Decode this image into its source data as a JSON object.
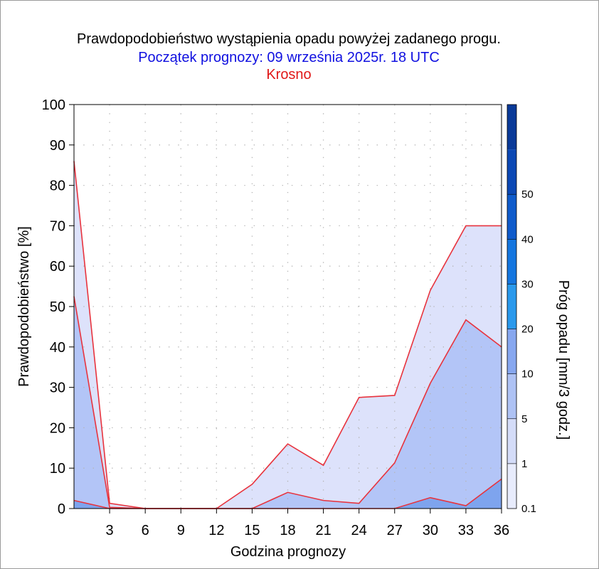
{
  "header": {
    "title": "Prawdopodobieństwo wystąpienia opadu powyżej zadanego progu.",
    "subtitle": "Początek prognozy: 09 września 2025r. 18 UTC",
    "location": "Krosno"
  },
  "colors": {
    "title": "#000000",
    "subtitle": "#1010e0",
    "location": "#e01818",
    "line": "#e8333d",
    "grid": "#b4b4b4"
  },
  "chart_data": {
    "type": "area",
    "title": "Prawdopodobieństwo wystąpienia opadu powyżej zadanego progu.",
    "xlabel": "Godzina prognozy",
    "ylabel": "Prawdopodobieństwo [%]",
    "xlim": [
      0,
      36
    ],
    "ylim": [
      0,
      100
    ],
    "xticks": [
      3,
      6,
      9,
      12,
      15,
      18,
      21,
      24,
      27,
      30,
      33,
      36
    ],
    "yticks": [
      0,
      10,
      20,
      30,
      40,
      50,
      60,
      70,
      80,
      90,
      100
    ],
    "grid": true,
    "x": [
      0,
      3,
      6,
      9,
      12,
      15,
      18,
      21,
      24,
      27,
      30,
      33,
      36
    ],
    "series": [
      {
        "threshold": 0.1,
        "color": "#dde2fb",
        "values": [
          86,
          1.3,
          0,
          0,
          0,
          6,
          16,
          10.7,
          27.5,
          28,
          54,
          70,
          70
        ]
      },
      {
        "threshold": 1,
        "color": "#b3c5f7",
        "values": [
          52.5,
          0.3,
          0,
          0,
          0,
          0,
          4,
          2,
          1.3,
          11.3,
          31,
          46.7,
          40
        ]
      },
      {
        "threshold": 5,
        "color": "#7ea4ee",
        "values": [
          2,
          0,
          0,
          0,
          0,
          0,
          0,
          0,
          0,
          0,
          2.7,
          0.7,
          7.3
        ]
      }
    ],
    "colorbar": {
      "label": "Próg opadu [mm/3 godz.]",
      "ticks": [
        "0.1",
        "1",
        "5",
        "10",
        "20",
        "30",
        "40",
        "50"
      ],
      "colors": [
        "#e8ecfc",
        "#d4dcf8",
        "#aec2f4",
        "#87a7ef",
        "#2a99ec",
        "#1476df",
        "#0f5bcb",
        "#0b48b4",
        "#0a3a98"
      ]
    }
  }
}
